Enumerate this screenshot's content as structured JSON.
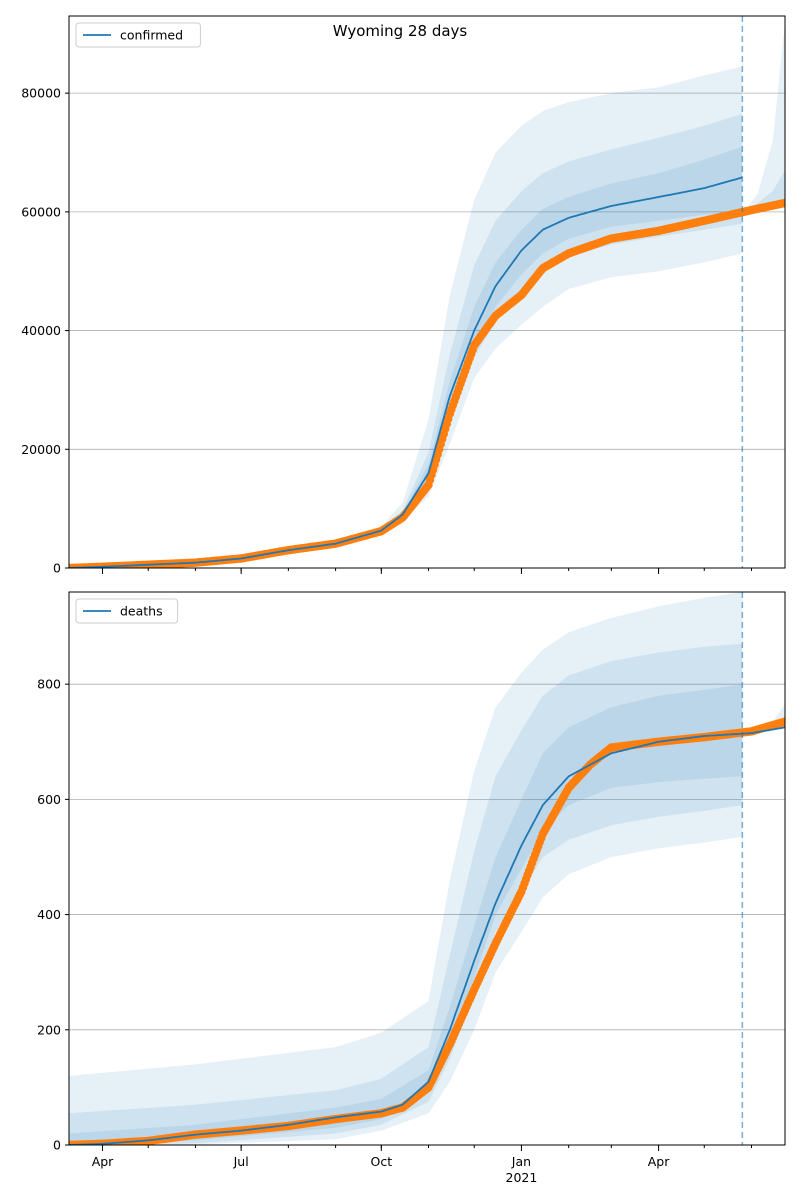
{
  "title": "Wyoming 28 days",
  "colors": {
    "line": "#1f77b4",
    "obs": "#ff7f0e",
    "band": "#1f77b4",
    "forecast_line": "#1f77b4",
    "grid": "#b0b0b0"
  },
  "x_axis": {
    "start": "2020-03-10",
    "end": "2021-06-23",
    "forecast_start": "2021-05-26",
    "ticks": [
      {
        "date": "2020-04-01",
        "label": "Apr"
      },
      {
        "date": "2020-07-01",
        "label": "Jul"
      },
      {
        "date": "2020-10-01",
        "label": "Oct"
      },
      {
        "date": "2021-01-01",
        "label": "Jan"
      },
      {
        "date": "2021-04-01",
        "label": "Apr"
      }
    ],
    "year_label": {
      "date": "2021-01-01",
      "label": "2021"
    }
  },
  "chart_data": [
    {
      "type": "line",
      "legend": "confirmed",
      "legend_position": "upper left",
      "grid": "y",
      "ylim": [
        0,
        93000
      ],
      "yticks": [
        0,
        20000,
        40000,
        60000,
        80000
      ],
      "line": {
        "name": "confirmed",
        "points": [
          [
            "2020-03-10",
            0
          ],
          [
            "2020-04-01",
            200
          ],
          [
            "2020-05-01",
            550
          ],
          [
            "2020-06-01",
            900
          ],
          [
            "2020-07-01",
            1600
          ],
          [
            "2020-08-01",
            3000
          ],
          [
            "2020-09-01",
            4100
          ],
          [
            "2020-10-01",
            6300
          ],
          [
            "2020-10-15",
            9000
          ],
          [
            "2020-11-01",
            16000
          ],
          [
            "2020-11-15",
            29000
          ],
          [
            "2020-12-01",
            40000
          ],
          [
            "2020-12-15",
            47500
          ],
          [
            "2021-01-01",
            53500
          ],
          [
            "2021-01-15",
            57000
          ],
          [
            "2021-02-01",
            59000
          ],
          [
            "2021-03-01",
            61000
          ],
          [
            "2021-04-01",
            62500
          ],
          [
            "2021-05-01",
            64000
          ],
          [
            "2021-05-26",
            65800
          ]
        ]
      },
      "observed": {
        "name": "observed",
        "points": [
          [
            "2020-03-10",
            0
          ],
          [
            "2020-04-01",
            200
          ],
          [
            "2020-05-01",
            550
          ],
          [
            "2020-06-01",
            900
          ],
          [
            "2020-07-01",
            1600
          ],
          [
            "2020-08-01",
            3000
          ],
          [
            "2020-09-01",
            4100
          ],
          [
            "2020-10-01",
            6200
          ],
          [
            "2020-10-15",
            8500
          ],
          [
            "2020-11-01",
            14000
          ],
          [
            "2020-11-15",
            26000
          ],
          [
            "2020-12-01",
            37500
          ],
          [
            "2020-12-15",
            42500
          ],
          [
            "2021-01-01",
            46000
          ],
          [
            "2021-01-15",
            50500
          ],
          [
            "2021-02-01",
            53000
          ],
          [
            "2021-03-01",
            55500
          ],
          [
            "2021-04-01",
            56800
          ],
          [
            "2021-05-01",
            58500
          ],
          [
            "2021-06-01",
            60300
          ],
          [
            "2021-06-23",
            61500
          ]
        ]
      },
      "bands": [
        {
          "level": "outer",
          "x": [
            "2020-10-01",
            "2020-10-15",
            "2020-11-01",
            "2020-11-15",
            "2020-12-01",
            "2020-12-15",
            "2021-01-01",
            "2021-01-15",
            "2021-02-01",
            "2021-03-01",
            "2021-04-01",
            "2021-05-01",
            "2021-05-26"
          ],
          "lo": [
            5800,
            8000,
            12000,
            21000,
            32000,
            37000,
            41000,
            44000,
            47000,
            49000,
            50000,
            51500,
            53000
          ],
          "hi": [
            7000,
            11000,
            25000,
            46000,
            62000,
            70000,
            74500,
            77000,
            78500,
            80000,
            81000,
            83000,
            84500
          ]
        },
        {
          "level": "middle",
          "x": [
            "2020-10-01",
            "2020-10-15",
            "2020-11-01",
            "2020-11-15",
            "2020-12-01",
            "2020-12-15",
            "2021-01-01",
            "2021-01-15",
            "2021-02-01",
            "2021-03-01",
            "2021-04-01",
            "2021-05-01",
            "2021-05-26"
          ],
          "lo": [
            6000,
            8400,
            13500,
            24500,
            35500,
            41500,
            46500,
            50000,
            52500,
            54500,
            55800,
            57000,
            58000
          ],
          "hi": [
            6600,
            9700,
            19500,
            36000,
            51000,
            58500,
            63500,
            66500,
            68500,
            70500,
            72500,
            74500,
            76500
          ]
        },
        {
          "level": "inner",
          "x": [
            "2020-10-01",
            "2020-10-15",
            "2020-11-01",
            "2020-11-15",
            "2020-12-01",
            "2020-12-15",
            "2021-01-01",
            "2021-01-15",
            "2021-02-01",
            "2021-03-01",
            "2021-04-01",
            "2021-05-01",
            "2021-05-26"
          ],
          "lo": [
            6150,
            8700,
            14500,
            26500,
            37500,
            44000,
            49500,
            53000,
            55500,
            57500,
            58500,
            59500,
            60000
          ],
          "hi": [
            6450,
            9300,
            17500,
            31500,
            44000,
            51500,
            57000,
            60500,
            62500,
            64800,
            66500,
            68800,
            71000
          ]
        },
        {
          "level": "forecast_outer",
          "x": [
            "2021-05-26",
            "2021-06-05",
            "2021-06-15",
            "2021-06-23"
          ],
          "lo": [
            59500,
            60000,
            60500,
            61000
          ],
          "hi": [
            59800,
            63000,
            72000,
            92000
          ]
        },
        {
          "level": "forecast_inner",
          "x": [
            "2021-05-26",
            "2021-06-05",
            "2021-06-15",
            "2021-06-23"
          ],
          "lo": [
            59700,
            60200,
            60800,
            61200
          ],
          "hi": [
            59900,
            61500,
            63500,
            67000
          ]
        }
      ]
    },
    {
      "type": "line",
      "legend": "deaths",
      "legend_position": "upper left",
      "grid": "y",
      "ylim": [
        0,
        960
      ],
      "yticks": [
        0,
        200,
        400,
        600,
        800
      ],
      "line": {
        "name": "deaths",
        "points": [
          [
            "2020-03-10",
            0
          ],
          [
            "2020-04-01",
            2
          ],
          [
            "2020-05-01",
            8
          ],
          [
            "2020-06-01",
            18
          ],
          [
            "2020-07-01",
            25
          ],
          [
            "2020-08-01",
            35
          ],
          [
            "2020-09-01",
            48
          ],
          [
            "2020-10-01",
            58
          ],
          [
            "2020-10-15",
            70
          ],
          [
            "2020-11-01",
            110
          ],
          [
            "2020-11-15",
            200
          ],
          [
            "2020-12-01",
            320
          ],
          [
            "2020-12-15",
            420
          ],
          [
            "2021-01-01",
            520
          ],
          [
            "2021-01-15",
            590
          ],
          [
            "2021-02-01",
            640
          ],
          [
            "2021-03-01",
            680
          ],
          [
            "2021-04-01",
            700
          ],
          [
            "2021-05-01",
            710
          ],
          [
            "2021-06-01",
            715
          ],
          [
            "2021-06-23",
            725
          ]
        ]
      },
      "observed": {
        "name": "observed",
        "points": [
          [
            "2020-03-10",
            0
          ],
          [
            "2020-04-01",
            2
          ],
          [
            "2020-05-01",
            7
          ],
          [
            "2020-06-01",
            18
          ],
          [
            "2020-07-01",
            25
          ],
          [
            "2020-08-01",
            33
          ],
          [
            "2020-09-01",
            45
          ],
          [
            "2020-10-01",
            55
          ],
          [
            "2020-10-15",
            65
          ],
          [
            "2020-11-01",
            100
          ],
          [
            "2020-11-15",
            175
          ],
          [
            "2020-12-01",
            270
          ],
          [
            "2020-12-15",
            350
          ],
          [
            "2021-01-01",
            440
          ],
          [
            "2021-01-15",
            540
          ],
          [
            "2021-02-01",
            620
          ],
          [
            "2021-02-15",
            660
          ],
          [
            "2021-03-01",
            690
          ],
          [
            "2021-04-01",
            700
          ],
          [
            "2021-05-01",
            708
          ],
          [
            "2021-06-01",
            718
          ],
          [
            "2021-06-23",
            735
          ]
        ]
      },
      "bands": [
        {
          "level": "outer",
          "x": [
            "2020-03-10",
            "2020-06-01",
            "2020-09-01",
            "2020-10-01",
            "2020-11-01",
            "2020-11-15",
            "2020-12-01",
            "2020-12-15",
            "2021-01-01",
            "2021-01-15",
            "2021-02-01",
            "2021-03-01",
            "2021-04-01",
            "2021-05-01",
            "2021-05-26"
          ],
          "lo": [
            0,
            1,
            10,
            25,
            55,
            110,
            200,
            300,
            370,
            430,
            470,
            500,
            515,
            525,
            535
          ],
          "hi": [
            120,
            140,
            170,
            195,
            250,
            460,
            650,
            760,
            820,
            860,
            890,
            915,
            935,
            950,
            960
          ]
        },
        {
          "level": "middle",
          "x": [
            "2020-03-10",
            "2020-06-01",
            "2020-09-01",
            "2020-10-01",
            "2020-11-01",
            "2020-11-15",
            "2020-12-01",
            "2020-12-15",
            "2021-01-01",
            "2021-01-15",
            "2021-02-01",
            "2021-03-01",
            "2021-04-01",
            "2021-05-01",
            "2021-05-26"
          ],
          "lo": [
            0,
            3,
            20,
            35,
            75,
            150,
            260,
            370,
            440,
            500,
            530,
            555,
            570,
            580,
            590
          ],
          "hi": [
            55,
            70,
            95,
            115,
            170,
            330,
            510,
            640,
            720,
            780,
            815,
            840,
            855,
            865,
            870
          ]
        },
        {
          "level": "inner",
          "x": [
            "2020-03-10",
            "2020-06-01",
            "2020-09-01",
            "2020-10-01",
            "2020-11-01",
            "2020-11-15",
            "2020-12-01",
            "2020-12-15",
            "2021-01-01",
            "2021-01-15",
            "2021-02-01",
            "2021-03-01",
            "2021-04-01",
            "2021-05-01",
            "2021-05-26"
          ],
          "lo": [
            0,
            8,
            30,
            45,
            90,
            175,
            290,
            400,
            480,
            545,
            590,
            620,
            630,
            636,
            640
          ],
          "hi": [
            20,
            35,
            65,
            80,
            130,
            240,
            380,
            500,
            600,
            680,
            725,
            760,
            780,
            790,
            800
          ]
        },
        {
          "level": "forecast_outer",
          "x": [
            "2021-05-26",
            "2021-06-05",
            "2021-06-15",
            "2021-06-23"
          ],
          "lo": [
            712,
            716,
            720,
            724
          ],
          "hi": [
            716,
            722,
            735,
            765
          ]
        },
        {
          "level": "forecast_inner",
          "x": [
            "2021-05-26",
            "2021-06-05",
            "2021-06-15",
            "2021-06-23"
          ],
          "lo": [
            714,
            718,
            722,
            726
          ],
          "hi": [
            715,
            720,
            728,
            742
          ]
        }
      ]
    }
  ]
}
